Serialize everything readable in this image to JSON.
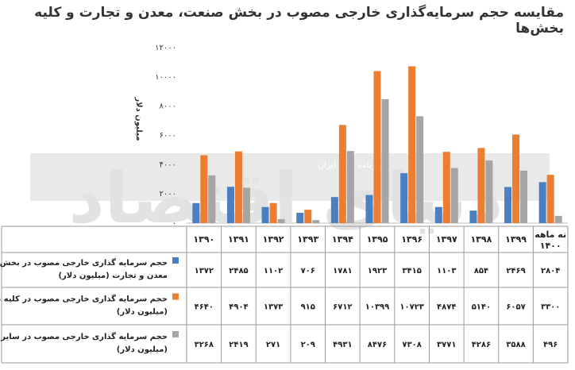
{
  "chart_data": {
    "type": "bar",
    "title": "مقایسه حجم سرمایه‌گذاری خارجی مصوب در بخش صنعت، معدن و تجارت و کلیه بخش‌ها",
    "ylabel": "میلیون دلار",
    "ylim": [
      0,
      12000
    ],
    "yticks": [
      "۱۲۰۰۰",
      "۱۰۰۰۰",
      "۸۰۰۰",
      "۶۰۰۰",
      "۴۰۰۰",
      "۲۰۰۰",
      "۰"
    ],
    "ytick_values": [
      12000,
      10000,
      8000,
      6000,
      4000,
      2000,
      0
    ],
    "categories": [
      "۱۳۹۰",
      "۱۳۹۱",
      "۱۳۹۲",
      "۱۳۹۳",
      "۱۳۹۴",
      "۱۳۹۵",
      "۱۳۹۶",
      "۱۳۹۷",
      "۱۳۹۸",
      "۱۳۹۹",
      "نه ماهه ۱۴۰۰"
    ],
    "series": [
      {
        "name": "حجم سرمایه گذاری خارجی مصوب در بخش صنعت، معدن و تجارت (میلیون دلار)",
        "color": "#4a7fc1",
        "values": [
          1372,
          2485,
          1102,
          706,
          1781,
          1923,
          3415,
          1103,
          854,
          2469,
          2804
        ],
        "labels": [
          "۱۳۷۲",
          "۲۴۸۵",
          "۱۱۰۲",
          "۷۰۶",
          "۱۷۸۱",
          "۱۹۲۳",
          "۳۴۱۵",
          "۱۱۰۳",
          "۸۵۴",
          "۲۴۶۹",
          "۲۸۰۴"
        ]
      },
      {
        "name": "حجم سرمایه گذاری خارجی مصوب در کلیه بخش ها (میلیون دلار)",
        "color": "#ed7d31",
        "values": [
          4640,
          4904,
          1373,
          915,
          6712,
          10399,
          10723,
          4874,
          5140,
          6057,
          3300
        ],
        "labels": [
          "۴۶۴۰",
          "۴۹۰۴",
          "۱۳۷۳",
          "۹۱۵",
          "۶۷۱۲",
          "۱۰۳۹۹",
          "۱۰۷۲۳",
          "۴۸۷۴",
          "۵۱۴۰",
          "۶۰۵۷",
          "۳۳۰۰"
        ]
      },
      {
        "name": "حجم سرمایه گذاری خارجی مصوب در سایر بخش ها (میلیون دلار)",
        "color": "#a5a5a5",
        "values": [
          3268,
          2419,
          271,
          209,
          4931,
          8476,
          7308,
          3771,
          4286,
          3588,
          496
        ],
        "labels": [
          "۳۲۶۸",
          "۲۴۱۹",
          "۲۷۱",
          "۲۰۹",
          "۴۹۳۱",
          "۸۴۷۶",
          "۷۳۰۸",
          "۳۷۷۱",
          "۴۲۸۶",
          "۳۵۸۸",
          "۴۹۶"
        ]
      }
    ],
    "legend": "table-below",
    "grid": false
  },
  "watermark": {
    "logo_text": "دنیای اقتصاد",
    "tagline": "روزنامه صبح ایران"
  }
}
